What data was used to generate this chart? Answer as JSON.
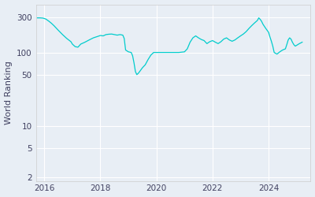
{
  "ylabel": "World Ranking",
  "line_color": "#00CCCC",
  "background_color": "#E8EEF5",
  "fig_bg_color": "#E8EEF5",
  "yticks": [
    2,
    5,
    10,
    50,
    100,
    300
  ],
  "ytick_labels": [
    "2",
    "5",
    "10",
    "50",
    "100",
    "300"
  ],
  "ylim_log": [
    1.8,
    450
  ],
  "xlim": [
    2015.7,
    2025.5
  ],
  "xticks": [
    2016,
    2018,
    2020,
    2022,
    2024
  ],
  "data_points": [
    [
      2015.75,
      295
    ],
    [
      2015.85,
      295
    ],
    [
      2015.95,
      293
    ],
    [
      2016.05,
      285
    ],
    [
      2016.15,
      268
    ],
    [
      2016.25,
      250
    ],
    [
      2016.35,
      230
    ],
    [
      2016.5,
      200
    ],
    [
      2016.65,
      175
    ],
    [
      2016.8,
      155
    ],
    [
      2016.95,
      140
    ],
    [
      2017.0,
      130
    ],
    [
      2017.1,
      120
    ],
    [
      2017.2,
      118
    ],
    [
      2017.3,
      130
    ],
    [
      2017.45,
      138
    ],
    [
      2017.6,
      148
    ],
    [
      2017.75,
      158
    ],
    [
      2017.9,
      165
    ],
    [
      2018.0,
      170
    ],
    [
      2018.1,
      168
    ],
    [
      2018.2,
      175
    ],
    [
      2018.3,
      177
    ],
    [
      2018.4,
      178
    ],
    [
      2018.5,
      175
    ],
    [
      2018.6,
      172
    ],
    [
      2018.7,
      175
    ],
    [
      2018.8,
      172
    ],
    [
      2018.85,
      155
    ],
    [
      2018.9,
      108
    ],
    [
      2019.0,
      102
    ],
    [
      2019.1,
      100
    ],
    [
      2019.15,
      90
    ],
    [
      2019.2,
      72
    ],
    [
      2019.25,
      55
    ],
    [
      2019.3,
      50
    ],
    [
      2019.35,
      52
    ],
    [
      2019.4,
      55
    ],
    [
      2019.5,
      62
    ],
    [
      2019.6,
      68
    ],
    [
      2019.7,
      80
    ],
    [
      2019.8,
      92
    ],
    [
      2019.9,
      100
    ],
    [
      2020.0,
      100
    ],
    [
      2020.2,
      100
    ],
    [
      2020.5,
      100
    ],
    [
      2020.8,
      100
    ],
    [
      2021.0,
      102
    ],
    [
      2021.1,
      112
    ],
    [
      2021.2,
      138
    ],
    [
      2021.3,
      158
    ],
    [
      2021.4,
      168
    ],
    [
      2021.5,
      158
    ],
    [
      2021.6,
      150
    ],
    [
      2021.7,
      145
    ],
    [
      2021.8,
      132
    ],
    [
      2021.9,
      140
    ],
    [
      2022.0,
      145
    ],
    [
      2022.1,
      138
    ],
    [
      2022.2,
      132
    ],
    [
      2022.3,
      140
    ],
    [
      2022.4,
      152
    ],
    [
      2022.5,
      158
    ],
    [
      2022.6,
      148
    ],
    [
      2022.7,
      142
    ],
    [
      2022.8,
      148
    ],
    [
      2022.9,
      158
    ],
    [
      2023.0,
      168
    ],
    [
      2023.1,
      178
    ],
    [
      2023.2,
      192
    ],
    [
      2023.3,
      212
    ],
    [
      2023.4,
      232
    ],
    [
      2023.5,
      252
    ],
    [
      2023.6,
      272
    ],
    [
      2023.65,
      295
    ],
    [
      2023.7,
      282
    ],
    [
      2023.75,
      265
    ],
    [
      2023.8,
      242
    ],
    [
      2023.9,
      212
    ],
    [
      2024.0,
      188
    ],
    [
      2024.05,
      162
    ],
    [
      2024.1,
      142
    ],
    [
      2024.15,
      122
    ],
    [
      2024.2,
      100
    ],
    [
      2024.3,
      95
    ],
    [
      2024.4,
      102
    ],
    [
      2024.5,
      108
    ],
    [
      2024.6,
      112
    ],
    [
      2024.65,
      128
    ],
    [
      2024.7,
      148
    ],
    [
      2024.75,
      158
    ],
    [
      2024.8,
      152
    ],
    [
      2024.85,
      138
    ],
    [
      2024.9,
      128
    ],
    [
      2024.95,
      122
    ],
    [
      2025.0,
      125
    ],
    [
      2025.1,
      132
    ],
    [
      2025.2,
      138
    ]
  ]
}
